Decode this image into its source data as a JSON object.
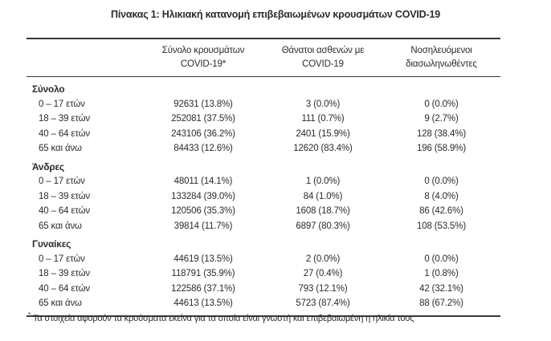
{
  "page": {
    "title": "Πίνακας 1: Ηλικιακή κατανομή επιβεβαιωμένων κρουσμάτων COVID-19",
    "text_color": "#2b2b2b",
    "rule_color": "#383838",
    "background": "#ffffff"
  },
  "table": {
    "columns": [
      {
        "line1": "",
        "line2": ""
      },
      {
        "line1": "Σύνολο κρουσμάτων",
        "line2": "COVID-19*"
      },
      {
        "line1": "Θάνατοι ασθενών με",
        "line2": "COVID-19"
      },
      {
        "line1": "Νοσηλευόμενοι",
        "line2": "διασωληνωθέντες"
      }
    ],
    "sections": [
      {
        "title": "Σύνολο",
        "rows": [
          {
            "label": "0 – 17 ετών",
            "cases": "92631 (13.8%)",
            "deaths": "3 (0.0%)",
            "intubated": "0 (0.0%)"
          },
          {
            "label": "18 – 39 ετών",
            "cases": "252081 (37.5%)",
            "deaths": "111 (0.7%)",
            "intubated": "9 (2.7%)"
          },
          {
            "label": "40 – 64 ετών",
            "cases": "243106 (36.2%)",
            "deaths": "2401 (15.9%)",
            "intubated": "128 (38.4%)"
          },
          {
            "label": "65 και άνω",
            "cases": "84433 (12.6%)",
            "deaths": "12620 (83.4%)",
            "intubated": "196 (58.9%)"
          }
        ]
      },
      {
        "title": "Άνδρες",
        "rows": [
          {
            "label": "0 – 17 ετών",
            "cases": "48011 (14.1%)",
            "deaths": "1 (0.0%)",
            "intubated": "0 (0.0%)"
          },
          {
            "label": "18 – 39 ετών",
            "cases": "133284 (39.0%)",
            "deaths": "84 (1.0%)",
            "intubated": "8 (4.0%)"
          },
          {
            "label": "40 – 64 ετών",
            "cases": "120506 (35.3%)",
            "deaths": "1608 (18.7%)",
            "intubated": "86 (42.6%)"
          },
          {
            "label": "65 και άνω",
            "cases": "39814 (11.7%)",
            "deaths": "6897 (80.3%)",
            "intubated": "108 (53.5%)"
          }
        ]
      },
      {
        "title": "Γυναίκες",
        "rows": [
          {
            "label": "0 – 17 ετών",
            "cases": "44619 (13.5%)",
            "deaths": "2 (0.0%)",
            "intubated": "0 (0.0%)"
          },
          {
            "label": "18 – 39 ετών",
            "cases": "118791 (35.9%)",
            "deaths": "27 (0.4%)",
            "intubated": "1 (0.8%)"
          },
          {
            "label": "40 – 64 ετών",
            "cases": "122586 (37.1%)",
            "deaths": "793 (12.1%)",
            "intubated": "42 (32.1%)"
          },
          {
            "label": "65 και άνω",
            "cases": "44613 (13.5%)",
            "deaths": "5723 (87.4%)",
            "intubated": "88 (67.2%)"
          }
        ]
      }
    ],
    "footnote": {
      "marker": "*",
      "text": "Τα στοιχεία αφορούν τα κρούσματα εκείνα για τα οποία είναι γνωστή και επιβεβαιωμένη η ηλικία τους"
    }
  }
}
